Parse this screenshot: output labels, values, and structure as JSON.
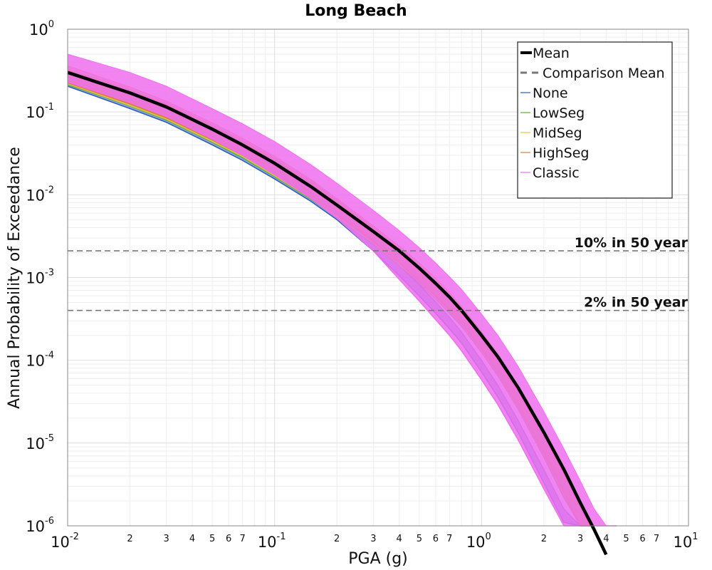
{
  "chart_data": {
    "type": "line",
    "title": "Long Beach",
    "xlabel": "PGA (g)",
    "ylabel": "Annual Probability of Exceedance",
    "xscale": "log",
    "yscale": "log",
    "xlim": [
      0.01,
      10
    ],
    "ylim": [
      1e-06,
      1
    ],
    "grid": true,
    "legend_position": "top-right",
    "x_tick_labels": [
      {
        "base": "10",
        "exp": "-2",
        "value": 0.01
      },
      {
        "base": "10",
        "exp": "-1",
        "value": 0.1
      },
      {
        "base": "10",
        "exp": "0",
        "value": 1
      },
      {
        "base": "10",
        "exp": "1",
        "value": 10
      }
    ],
    "y_tick_labels": [
      {
        "base": "10",
        "exp": "0",
        "value": 1
      },
      {
        "base": "10",
        "exp": "-1",
        "value": 0.1
      },
      {
        "base": "10",
        "exp": "-2",
        "value": 0.01
      },
      {
        "base": "10",
        "exp": "-3",
        "value": 0.001
      },
      {
        "base": "10",
        "exp": "-4",
        "value": 0.0001
      },
      {
        "base": "10",
        "exp": "-5",
        "value": 1e-05
      },
      {
        "base": "10",
        "exp": "-6",
        "value": 1e-06
      }
    ],
    "minor_tick_labels": [
      "2",
      "3",
      "4",
      "5",
      "6",
      "7"
    ],
    "reference_lines": [
      {
        "label": "10% in 50 year",
        "y": 0.0021,
        "color": "#777777",
        "style": "dashed"
      },
      {
        "label": "2% in 50 year",
        "y": 0.0004,
        "color": "#777777",
        "style": "dashed"
      }
    ],
    "series": [
      {
        "name": "Mean",
        "color": "#000000",
        "style": "solid-thick",
        "x": [
          0.01,
          0.02,
          0.03,
          0.05,
          0.07,
          0.1,
          0.15,
          0.2,
          0.3,
          0.4,
          0.5,
          0.6,
          0.7,
          0.8,
          1.0,
          1.2,
          1.5,
          2.0,
          2.5,
          3.0,
          3.5,
          4.0
        ],
        "y": [
          0.3,
          0.17,
          0.115,
          0.062,
          0.04,
          0.024,
          0.0125,
          0.0075,
          0.0036,
          0.0021,
          0.0013,
          0.00085,
          0.00058,
          0.0004,
          0.0002,
          0.00011,
          4.7e-05,
          1.35e-05,
          4.8e-06,
          1.9e-06,
          9e-07,
          4.5e-07
        ]
      },
      {
        "name": "Comparison Mean",
        "color": "#777777",
        "style": "dashed",
        "x": [],
        "y": []
      },
      {
        "name": "None",
        "color": "#2e5bb8",
        "band": true,
        "x": [
          0.01,
          0.02,
          0.03,
          0.05,
          0.07,
          0.1,
          0.15,
          0.2,
          0.3,
          0.4,
          0.5,
          0.6,
          0.7,
          0.8,
          1.0,
          1.2,
          1.5,
          2.0,
          2.5,
          3.0
        ],
        "lower": [
          0.205,
          0.11,
          0.075,
          0.04,
          0.026,
          0.0155,
          0.0083,
          0.005,
          0.0021,
          0.00105,
          0.0006,
          0.00037,
          0.00024,
          0.000162,
          7.2e-05,
          3.6e-05,
          1.35e-05,
          3.3e-06,
          1.1e-06,
          4.2e-07
        ],
        "upper": [
          0.29,
          0.16,
          0.11,
          0.058,
          0.038,
          0.0225,
          0.0118,
          0.0068,
          0.0028,
          0.0014,
          0.00082,
          0.00051,
          0.00033,
          0.00022,
          0.0001,
          5e-05,
          1.9e-05,
          4.8e-06,
          1.6e-06,
          6e-07
        ]
      },
      {
        "name": "LowSeg",
        "color": "#5fae3a",
        "band": true,
        "x": [
          0.01,
          0.02,
          0.03,
          0.05,
          0.07,
          0.1,
          0.15,
          0.2,
          0.3,
          0.4,
          0.5,
          0.6,
          0.7,
          0.8,
          1.0,
          1.2,
          1.5,
          2.0,
          2.5,
          3.0,
          3.5
        ],
        "lower": [
          0.215,
          0.118,
          0.08,
          0.043,
          0.028,
          0.0165,
          0.0088,
          0.0053,
          0.0025,
          0.0014,
          0.00085,
          0.00055,
          0.00037,
          0.00026,
          0.000125,
          6.5e-05,
          2.6e-05,
          6.8e-06,
          2.2e-06,
          8.5e-07,
          3.8e-07
        ],
        "upper": [
          0.32,
          0.185,
          0.125,
          0.068,
          0.044,
          0.027,
          0.0142,
          0.0084,
          0.0039,
          0.0022,
          0.00137,
          0.00089,
          0.0006,
          0.00041,
          0.0002,
          0.00011,
          4.5e-05,
          1.25e-05,
          4.3e-06,
          1.7e-06,
          7.5e-07
        ]
      },
      {
        "name": "MidSeg",
        "color": "#e6c34a",
        "band": true,
        "x": [
          0.01,
          0.02,
          0.03,
          0.05,
          0.07,
          0.1,
          0.15,
          0.2,
          0.3,
          0.4,
          0.5,
          0.6,
          0.7,
          0.8,
          1.0,
          1.2,
          1.5,
          2.0,
          2.5,
          3.0,
          3.5
        ],
        "lower": [
          0.22,
          0.12,
          0.082,
          0.044,
          0.029,
          0.017,
          0.009,
          0.0055,
          0.0026,
          0.00145,
          0.00088,
          0.00057,
          0.00039,
          0.00027,
          0.00013,
          6.8e-05,
          2.7e-05,
          7.2e-06,
          2.4e-06,
          9e-07,
          4e-07
        ],
        "upper": [
          0.33,
          0.19,
          0.128,
          0.07,
          0.045,
          0.0275,
          0.0145,
          0.0086,
          0.004,
          0.00225,
          0.0014,
          0.00091,
          0.00062,
          0.00042,
          0.000205,
          0.000112,
          4.7e-05,
          1.3e-05,
          4.5e-06,
          1.8e-06,
          8e-07
        ]
      },
      {
        "name": "HighSeg",
        "color": "#e07a3a",
        "band": true,
        "x": [
          0.01,
          0.02,
          0.03,
          0.05,
          0.07,
          0.1,
          0.15,
          0.2,
          0.3,
          0.4,
          0.5,
          0.6,
          0.7,
          0.8,
          1.0,
          1.2,
          1.5,
          2.0,
          2.5,
          3.0,
          3.5
        ],
        "lower": [
          0.225,
          0.125,
          0.085,
          0.046,
          0.03,
          0.0175,
          0.0093,
          0.0057,
          0.0027,
          0.0015,
          0.0009,
          0.00059,
          0.0004,
          0.00028,
          0.000135,
          7e-05,
          2.8e-05,
          7.5e-06,
          2.5e-06,
          9.5e-07,
          4.2e-07
        ],
        "upper": [
          0.36,
          0.2,
          0.135,
          0.074,
          0.048,
          0.029,
          0.0152,
          0.009,
          0.0042,
          0.0024,
          0.0015,
          0.00098,
          0.00066,
          0.00045,
          0.00022,
          0.00012,
          5e-05,
          1.4e-05,
          4.8e-06,
          1.9e-06,
          8.5e-07
        ]
      },
      {
        "name": "Classic",
        "color": "#f06ef0",
        "band": true,
        "x": [
          0.01,
          0.02,
          0.03,
          0.05,
          0.07,
          0.1,
          0.15,
          0.2,
          0.3,
          0.4,
          0.5,
          0.6,
          0.7,
          0.8,
          1.0,
          1.2,
          1.5,
          2.0,
          2.5,
          3.0,
          3.5,
          4.0,
          4.5
        ],
        "lower": [
          0.23,
          0.13,
          0.088,
          0.047,
          0.03,
          0.0175,
          0.009,
          0.0052,
          0.0021,
          0.00095,
          0.00052,
          0.00031,
          0.0002,
          0.00013,
          5.8e-05,
          2.9e-05,
          1.1e-05,
          2.8e-06,
          9.5e-07,
          4e-07,
          1.8e-07,
          9e-08,
          5e-08
        ],
        "upper": [
          0.5,
          0.3,
          0.205,
          0.11,
          0.072,
          0.044,
          0.023,
          0.0138,
          0.0065,
          0.0037,
          0.0023,
          0.0015,
          0.00102,
          0.00072,
          0.00036,
          0.0002,
          8.5e-05,
          2.4e-05,
          8.5e-06,
          3.5e-06,
          1.6e-06,
          8e-07,
          4e-07
        ]
      }
    ]
  }
}
